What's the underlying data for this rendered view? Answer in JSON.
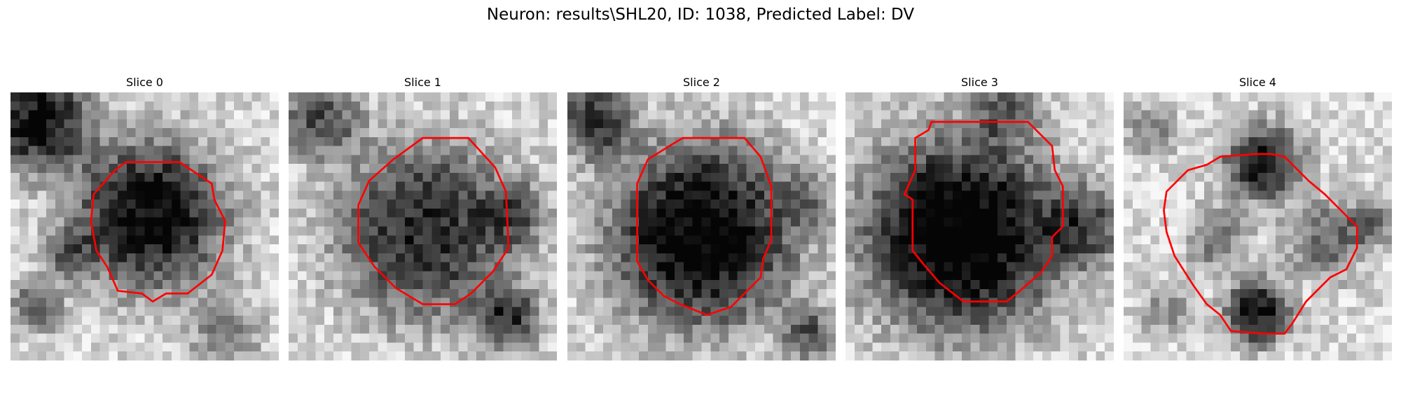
{
  "figure": {
    "title": "Neuron: results\\SHL20, ID: 1038, Predicted Label: DV"
  },
  "panels": [
    {
      "title": "Slice 0",
      "seed": 11,
      "dark_blobs": [
        [
          5.2,
          4.6,
          5.8,
          0.85
        ],
        [
          1.0,
          1.0,
          4.0,
          0.8
        ],
        [
          1.0,
          8.0,
          2.0,
          0.5
        ],
        [
          2.0,
          6.0,
          2.0,
          0.4
        ],
        [
          8.0,
          9.0,
          3.0,
          0.3
        ]
      ],
      "contour": [
        [
          4.3,
          2.6
        ],
        [
          6.3,
          2.6
        ],
        [
          7.5,
          3.4
        ],
        [
          7.6,
          4.0
        ],
        [
          8.0,
          4.8
        ],
        [
          7.9,
          5.9
        ],
        [
          7.5,
          6.8
        ],
        [
          6.6,
          7.5
        ],
        [
          5.8,
          7.5
        ],
        [
          5.3,
          7.8
        ],
        [
          4.9,
          7.5
        ],
        [
          4.0,
          7.4
        ],
        [
          3.6,
          6.5
        ],
        [
          3.2,
          5.9
        ],
        [
          3.0,
          4.8
        ],
        [
          3.1,
          3.8
        ],
        [
          3.9,
          2.9
        ]
      ]
    },
    {
      "title": "Slice 1",
      "seed": 23,
      "dark_blobs": [
        [
          5.1,
          5.2,
          6.8,
          0.7
        ],
        [
          1.2,
          1.0,
          3.0,
          0.55
        ],
        [
          8.2,
          8.5,
          2.5,
          0.6
        ],
        [
          8.5,
          4.5,
          2.5,
          0.35
        ]
      ],
      "contour": [
        [
          5.0,
          1.7
        ],
        [
          6.7,
          1.7
        ],
        [
          7.7,
          2.8
        ],
        [
          8.1,
          3.7
        ],
        [
          8.2,
          5.8
        ],
        [
          7.6,
          6.7
        ],
        [
          6.8,
          7.5
        ],
        [
          6.2,
          7.9
        ],
        [
          5.0,
          7.9
        ],
        [
          4.0,
          7.3
        ],
        [
          3.2,
          6.5
        ],
        [
          2.6,
          5.6
        ],
        [
          2.6,
          4.2
        ],
        [
          3.0,
          3.3
        ],
        [
          3.9,
          2.5
        ]
      ]
    },
    {
      "title": "Slice 2",
      "seed": 37,
      "dark_blobs": [
        [
          5.0,
          5.3,
          7.2,
          0.9
        ],
        [
          1.0,
          1.0,
          3.0,
          0.6
        ],
        [
          9.0,
          9.0,
          2.0,
          0.5
        ],
        [
          9.0,
          4.0,
          2.0,
          0.3
        ]
      ],
      "contour": [
        [
          4.3,
          1.7
        ],
        [
          6.6,
          1.7
        ],
        [
          7.2,
          2.4
        ],
        [
          7.6,
          3.5
        ],
        [
          7.6,
          5.5
        ],
        [
          7.3,
          6.2
        ],
        [
          7.2,
          6.9
        ],
        [
          6.6,
          7.5
        ],
        [
          6.1,
          8.0
        ],
        [
          5.2,
          8.3
        ],
        [
          4.2,
          7.9
        ],
        [
          3.6,
          7.6
        ],
        [
          3.0,
          7.0
        ],
        [
          2.6,
          6.3
        ],
        [
          2.6,
          3.4
        ],
        [
          3.0,
          2.5
        ],
        [
          3.8,
          2.0
        ]
      ]
    },
    {
      "title": "Slice 3",
      "seed": 53,
      "dark_blobs": [
        [
          4.3,
          5.3,
          7.6,
          0.95
        ],
        [
          9.0,
          5.0,
          3.0,
          0.5
        ],
        [
          6.0,
          0.6,
          2.5,
          0.4
        ]
      ],
      "contour": [
        [
          3.2,
          1.1
        ],
        [
          6.8,
          1.1
        ],
        [
          7.7,
          2.0
        ],
        [
          7.8,
          2.9
        ],
        [
          8.1,
          3.5
        ],
        [
          8.1,
          5.0
        ],
        [
          7.7,
          5.4
        ],
        [
          7.7,
          6.1
        ],
        [
          7.3,
          6.7
        ],
        [
          6.5,
          7.4
        ],
        [
          6.0,
          7.8
        ],
        [
          4.4,
          7.8
        ],
        [
          3.5,
          7.1
        ],
        [
          2.9,
          6.4
        ],
        [
          2.5,
          5.9
        ],
        [
          2.5,
          4.0
        ],
        [
          2.2,
          3.8
        ],
        [
          2.6,
          2.9
        ],
        [
          2.6,
          1.7
        ],
        [
          3.1,
          1.4
        ]
      ]
    },
    {
      "title": "Slice 4",
      "seed": 71,
      "dark_blobs": [
        [
          5.2,
          2.6,
          3.0,
          0.75
        ],
        [
          5.0,
          8.2,
          2.5,
          0.8
        ],
        [
          3.5,
          5.5,
          2.5,
          0.35
        ],
        [
          7.5,
          5.5,
          3.0,
          0.45
        ],
        [
          9.3,
          4.8,
          2.0,
          0.35
        ],
        [
          1.0,
          1.5,
          2.0,
          0.3
        ],
        [
          1.5,
          8.0,
          2.0,
          0.3
        ]
      ],
      "contour": [
        [
          4.9,
          2.3
        ],
        [
          5.5,
          2.3
        ],
        [
          6.0,
          2.4
        ],
        [
          6.9,
          3.3
        ],
        [
          7.5,
          3.8
        ],
        [
          8.1,
          4.4
        ],
        [
          8.7,
          5.0
        ],
        [
          8.7,
          5.8
        ],
        [
          8.3,
          6.6
        ],
        [
          7.7,
          6.9
        ],
        [
          6.8,
          7.8
        ],
        [
          6.3,
          8.6
        ],
        [
          6.0,
          9.0
        ],
        [
          5.2,
          9.0
        ],
        [
          4.0,
          8.9
        ],
        [
          3.6,
          8.3
        ],
        [
          3.1,
          7.9
        ],
        [
          2.6,
          7.2
        ],
        [
          1.9,
          6.1
        ],
        [
          1.6,
          5.2
        ],
        [
          1.5,
          4.4
        ],
        [
          1.6,
          3.7
        ],
        [
          2.4,
          2.9
        ],
        [
          3.1,
          2.7
        ],
        [
          3.6,
          2.4
        ]
      ]
    }
  ],
  "style": {
    "contour_color": "#ff0000"
  }
}
